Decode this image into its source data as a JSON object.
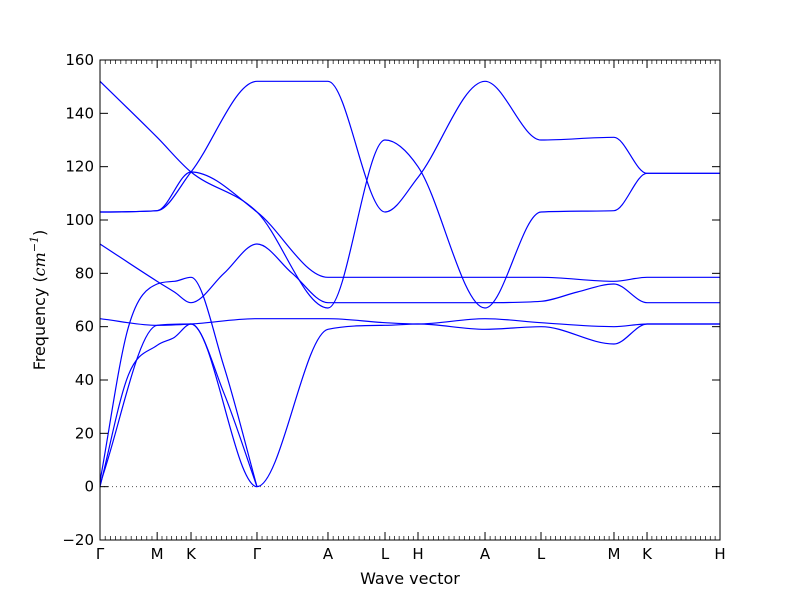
{
  "chart_data": {
    "type": "line",
    "xlabel": "Wave vector",
    "ylabel_prefix": "Frequency (",
    "ylabel_unit": "cm",
    "ylabel_exponent": "−1",
    "ylabel_suffix": ")",
    "ylim": [
      -20,
      160
    ],
    "yticks": [
      -20,
      0,
      20,
      40,
      60,
      80,
      100,
      120,
      140,
      160
    ],
    "xlim": [
      0,
      1
    ],
    "high_symmetry_points": [
      {
        "label": "Γ",
        "x": 0.0
      },
      {
        "label": "M",
        "x": 0.0922
      },
      {
        "label": "K",
        "x": 0.1468
      },
      {
        "label": "Γ",
        "x": 0.2532
      },
      {
        "label": "A",
        "x": 0.3677
      },
      {
        "label": "L",
        "x": 0.4597
      },
      {
        "label": "H",
        "x": 0.5129
      },
      {
        "label": "A",
        "x": 0.621
      },
      {
        "label": "L",
        "x": 0.7113
      },
      {
        "label": "M",
        "x": 0.829
      },
      {
        "label": "K",
        "x": 0.8823
      },
      {
        "label": "H",
        "x": 1.0
      }
    ],
    "zero_line": true,
    "line_color": "#0000ff",
    "series": [
      {
        "x": [
          0,
          0.046,
          0.0922,
          0.12,
          0.1468,
          0.2,
          0.2532
        ],
        "values": [
          0,
          42,
          53,
          56,
          61,
          35,
          0
        ]
      },
      {
        "x": [
          0,
          0.046,
          0.0922,
          0.12,
          0.1468,
          0.2,
          0.2532
        ],
        "values": [
          2,
          60,
          76,
          77,
          78.5,
          45,
          0
        ]
      },
      {
        "x": [
          0,
          0.0922,
          0.1468,
          0.2532,
          0.3677,
          0.4597,
          0.5129,
          0.621,
          0.7113,
          0.829,
          0.8823,
          1.0
        ],
        "values": [
          63,
          60.5,
          61,
          63,
          63,
          61.5,
          61,
          63,
          61.5,
          60,
          61,
          61
        ]
      },
      {
        "x": [
          0,
          0.0922,
          0.12,
          0.1468,
          0.2,
          0.2532,
          0.31,
          0.3677,
          0.4597,
          0.5129,
          0.621,
          0.7113,
          0.77,
          0.829,
          0.8823,
          1.0
        ],
        "values": [
          91,
          77,
          73,
          69,
          80,
          91,
          80,
          69,
          69,
          69,
          69,
          69.5,
          73,
          76,
          69,
          69
        ]
      },
      {
        "x": [
          0,
          0.0922,
          0.1468,
          0.2532,
          0.3677,
          0.4597,
          0.5129,
          0.621,
          0.7113,
          0.829,
          0.8823,
          1.0
        ],
        "values": [
          103,
          103.5,
          118,
          103,
          78.5,
          78.5,
          78.5,
          78.5,
          78.5,
          77,
          78.5,
          78.5
        ]
      },
      {
        "x": [
          0,
          0.0922,
          0.1468,
          0.2532,
          0.3677,
          0.4597,
          0.5129,
          0.621,
          0.7113,
          0.829,
          0.8823,
          1.0
        ],
        "values": [
          152,
          131,
          118,
          103,
          67,
          130,
          120,
          67,
          103,
          103.5,
          117.5,
          117.5
        ]
      },
      {
        "x": [
          0,
          0.0922,
          0.1468,
          0.2532,
          0.3677,
          0.4597,
          0.5129,
          0.621,
          0.7113,
          0.829,
          0.8823,
          1.0
        ],
        "values": [
          103,
          103.5,
          118,
          152,
          152,
          103,
          116,
          152,
          130,
          131,
          117.5,
          117.5
        ]
      },
      {
        "x": [
          0,
          0.0922,
          0.1468,
          0.2532,
          0.3677,
          0.4597,
          0.5129,
          0.621,
          0.7113,
          0.829,
          0.8823,
          1.0
        ],
        "values": [
          1,
          60.5,
          61,
          0,
          59,
          60.5,
          61,
          59,
          60,
          53.5,
          61,
          61
        ]
      }
    ]
  }
}
